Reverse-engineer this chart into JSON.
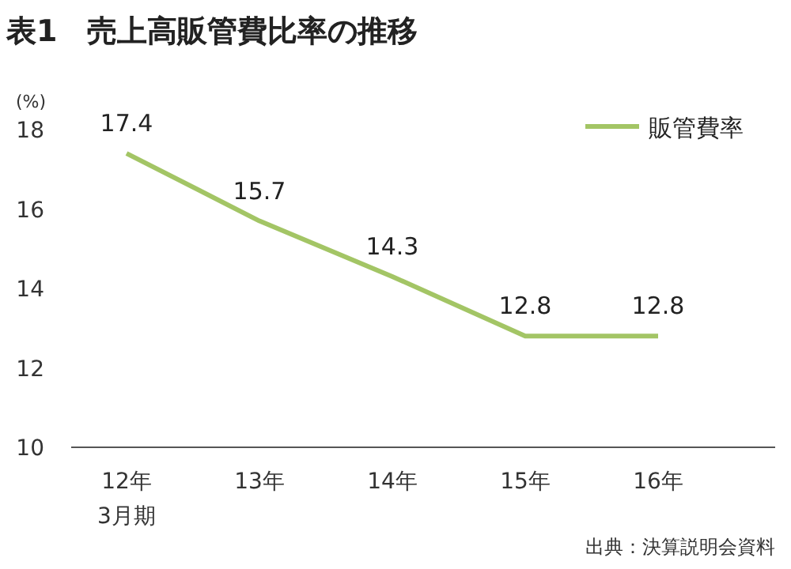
{
  "chart_data": {
    "type": "line",
    "title": "表1　売上高販管費比率の推移",
    "ylabel": "(%)",
    "categories": [
      "12年\n3月期",
      "13年",
      "14年",
      "15年",
      "16年"
    ],
    "series": [
      {
        "name": "販管費率",
        "color": "#a3c565",
        "values": [
          17.4,
          15.7,
          14.3,
          12.8,
          12.8
        ]
      }
    ],
    "ylim": [
      10,
      18
    ],
    "yticks": [
      10,
      12,
      14,
      16,
      18
    ],
    "data_labels": true,
    "legend": "top right",
    "grid": false,
    "marker": "none",
    "line_style": "solid",
    "annotations": [
      "出典：決算説明会資料"
    ]
  }
}
